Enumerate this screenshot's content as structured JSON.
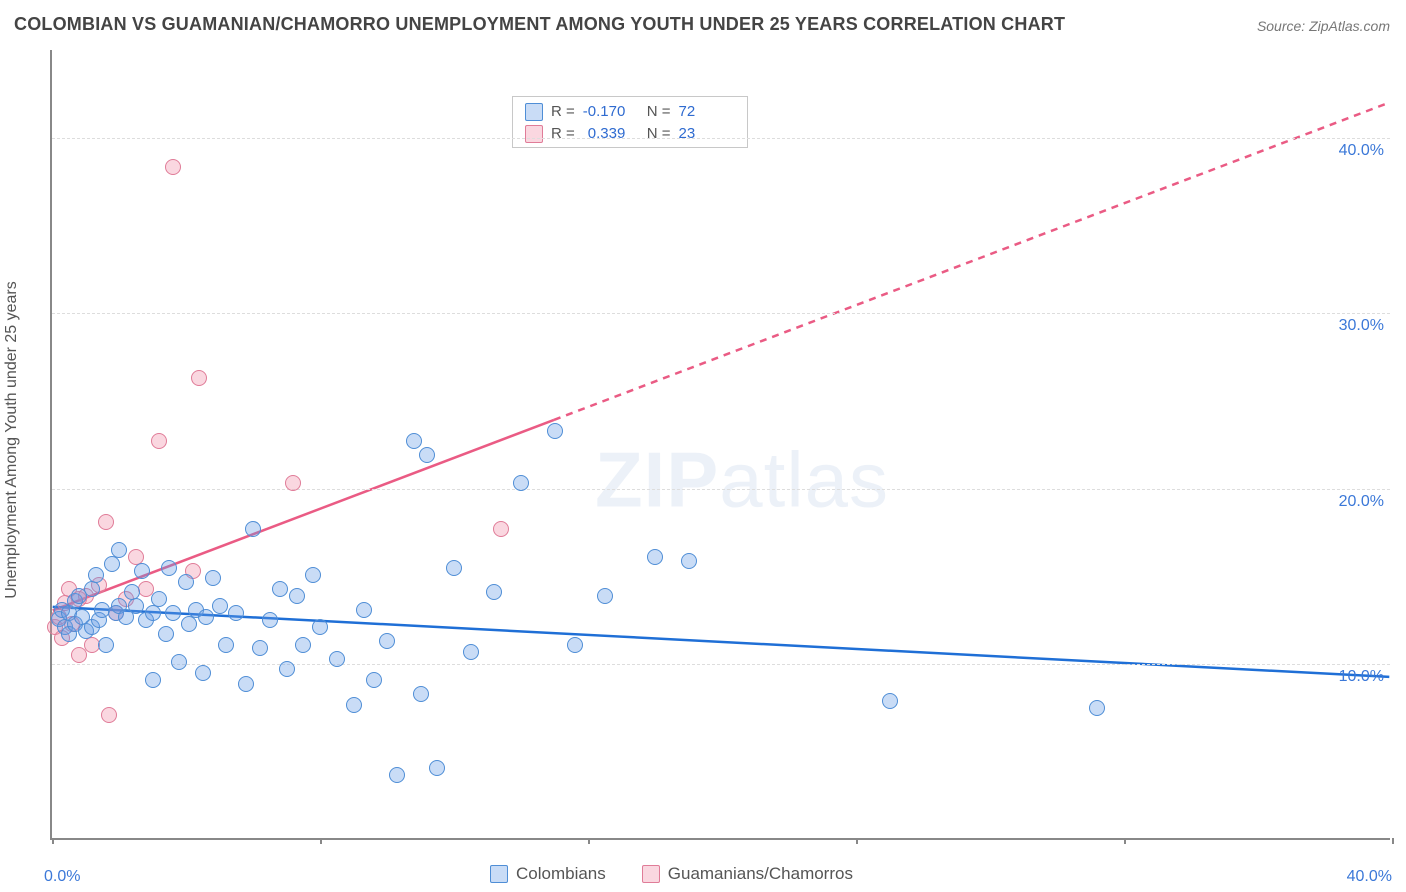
{
  "title": "COLOMBIAN VS GUAMANIAN/CHAMORRO UNEMPLOYMENT AMONG YOUTH UNDER 25 YEARS CORRELATION CHART",
  "source": "Source: ZipAtlas.com",
  "watermark_a": "ZIP",
  "watermark_b": "atlas",
  "ylabel": "Unemployment Among Youth under 25 years",
  "axis": {
    "xlim": [
      0,
      40
    ],
    "ylim": [
      0,
      45
    ],
    "x_tick_left": "0.0%",
    "x_tick_right": "40.0%",
    "x_ticks": [
      0,
      8,
      16,
      24,
      32,
      40
    ],
    "y_grid": [
      10,
      20,
      30,
      40
    ],
    "y_labels": [
      "10.0%",
      "20.0%",
      "30.0%",
      "40.0%"
    ],
    "tick_color": "#3b78d8",
    "grid_color": "#dddddd",
    "axis_color": "#888888"
  },
  "series": {
    "colombians": {
      "label": "Colombians",
      "fill": "rgba(100,155,230,0.35)",
      "stroke": "#4f8ed6",
      "line_color": "#1f6fd6",
      "R": "-0.170",
      "N": "72",
      "trend": {
        "x1": 0,
        "y1": 13.2,
        "x2": 40,
        "y2": 9.2,
        "dash_from_x": null
      },
      "points": [
        [
          0.2,
          12.5
        ],
        [
          0.3,
          13.0
        ],
        [
          0.4,
          12.0
        ],
        [
          0.5,
          12.8
        ],
        [
          0.5,
          11.6
        ],
        [
          0.7,
          13.5
        ],
        [
          0.7,
          12.2
        ],
        [
          0.8,
          13.8
        ],
        [
          0.9,
          12.6
        ],
        [
          1.0,
          11.8
        ],
        [
          1.2,
          14.2
        ],
        [
          1.2,
          12.0
        ],
        [
          1.3,
          15.0
        ],
        [
          1.4,
          12.4
        ],
        [
          1.5,
          13.0
        ],
        [
          1.6,
          11.0
        ],
        [
          1.8,
          15.6
        ],
        [
          1.9,
          12.8
        ],
        [
          2.0,
          16.4
        ],
        [
          2.0,
          13.2
        ],
        [
          2.2,
          12.6
        ],
        [
          2.4,
          14.0
        ],
        [
          2.5,
          13.2
        ],
        [
          2.7,
          15.2
        ],
        [
          2.8,
          12.4
        ],
        [
          3.0,
          12.8
        ],
        [
          3.0,
          9.0
        ],
        [
          3.2,
          13.6
        ],
        [
          3.4,
          11.6
        ],
        [
          3.5,
          15.4
        ],
        [
          3.6,
          12.8
        ],
        [
          3.8,
          10.0
        ],
        [
          4.0,
          14.6
        ],
        [
          4.1,
          12.2
        ],
        [
          4.3,
          13.0
        ],
        [
          4.5,
          9.4
        ],
        [
          4.6,
          12.6
        ],
        [
          4.8,
          14.8
        ],
        [
          5.0,
          13.2
        ],
        [
          5.2,
          11.0
        ],
        [
          5.5,
          12.8
        ],
        [
          5.8,
          8.8
        ],
        [
          6.0,
          17.6
        ],
        [
          6.2,
          10.8
        ],
        [
          6.5,
          12.4
        ],
        [
          6.8,
          14.2
        ],
        [
          7.0,
          9.6
        ],
        [
          7.3,
          13.8
        ],
        [
          7.5,
          11.0
        ],
        [
          7.8,
          15.0
        ],
        [
          8.0,
          12.0
        ],
        [
          8.5,
          10.2
        ],
        [
          9.0,
          7.6
        ],
        [
          9.3,
          13.0
        ],
        [
          9.6,
          9.0
        ],
        [
          10.0,
          11.2
        ],
        [
          10.3,
          3.6
        ],
        [
          10.8,
          22.6
        ],
        [
          11.0,
          8.2
        ],
        [
          11.2,
          21.8
        ],
        [
          11.5,
          4.0
        ],
        [
          12.0,
          15.4
        ],
        [
          12.5,
          10.6
        ],
        [
          13.2,
          14.0
        ],
        [
          14.0,
          20.2
        ],
        [
          15.0,
          23.2
        ],
        [
          15.6,
          11.0
        ],
        [
          16.5,
          13.8
        ],
        [
          18.0,
          16.0
        ],
        [
          19.0,
          15.8
        ],
        [
          25.0,
          7.8
        ],
        [
          31.2,
          7.4
        ]
      ]
    },
    "guamanians": {
      "label": "Guamanians/Chamorros",
      "fill": "rgba(240,140,165,0.35)",
      "stroke": "#e07c98",
      "line_color": "#ea5b84",
      "R": "0.339",
      "N": "23",
      "trend": {
        "x1": 0,
        "y1": 13.0,
        "x2": 40,
        "y2": 42.0,
        "dash_from_x": 15
      },
      "points": [
        [
          0.1,
          12.0
        ],
        [
          0.2,
          12.6
        ],
        [
          0.3,
          11.4
        ],
        [
          0.4,
          13.4
        ],
        [
          0.5,
          14.2
        ],
        [
          0.6,
          12.2
        ],
        [
          0.8,
          13.6
        ],
        [
          0.8,
          10.4
        ],
        [
          1.0,
          13.8
        ],
        [
          1.2,
          11.0
        ],
        [
          1.4,
          14.4
        ],
        [
          1.6,
          18.0
        ],
        [
          1.7,
          7.0
        ],
        [
          1.9,
          12.8
        ],
        [
          2.2,
          13.6
        ],
        [
          2.5,
          16.0
        ],
        [
          2.8,
          14.2
        ],
        [
          3.2,
          22.6
        ],
        [
          3.6,
          38.2
        ],
        [
          4.2,
          15.2
        ],
        [
          4.4,
          26.2
        ],
        [
          7.2,
          20.2
        ],
        [
          13.4,
          17.6
        ]
      ]
    }
  },
  "legend": {
    "r_label": "R =",
    "n_label": "N ="
  },
  "style": {
    "title_color": "#444444",
    "title_fontsize": 18,
    "label_fontsize": 16,
    "point_radius": 8,
    "background": "#ffffff",
    "corr_value_color": "#2f6bd0"
  }
}
